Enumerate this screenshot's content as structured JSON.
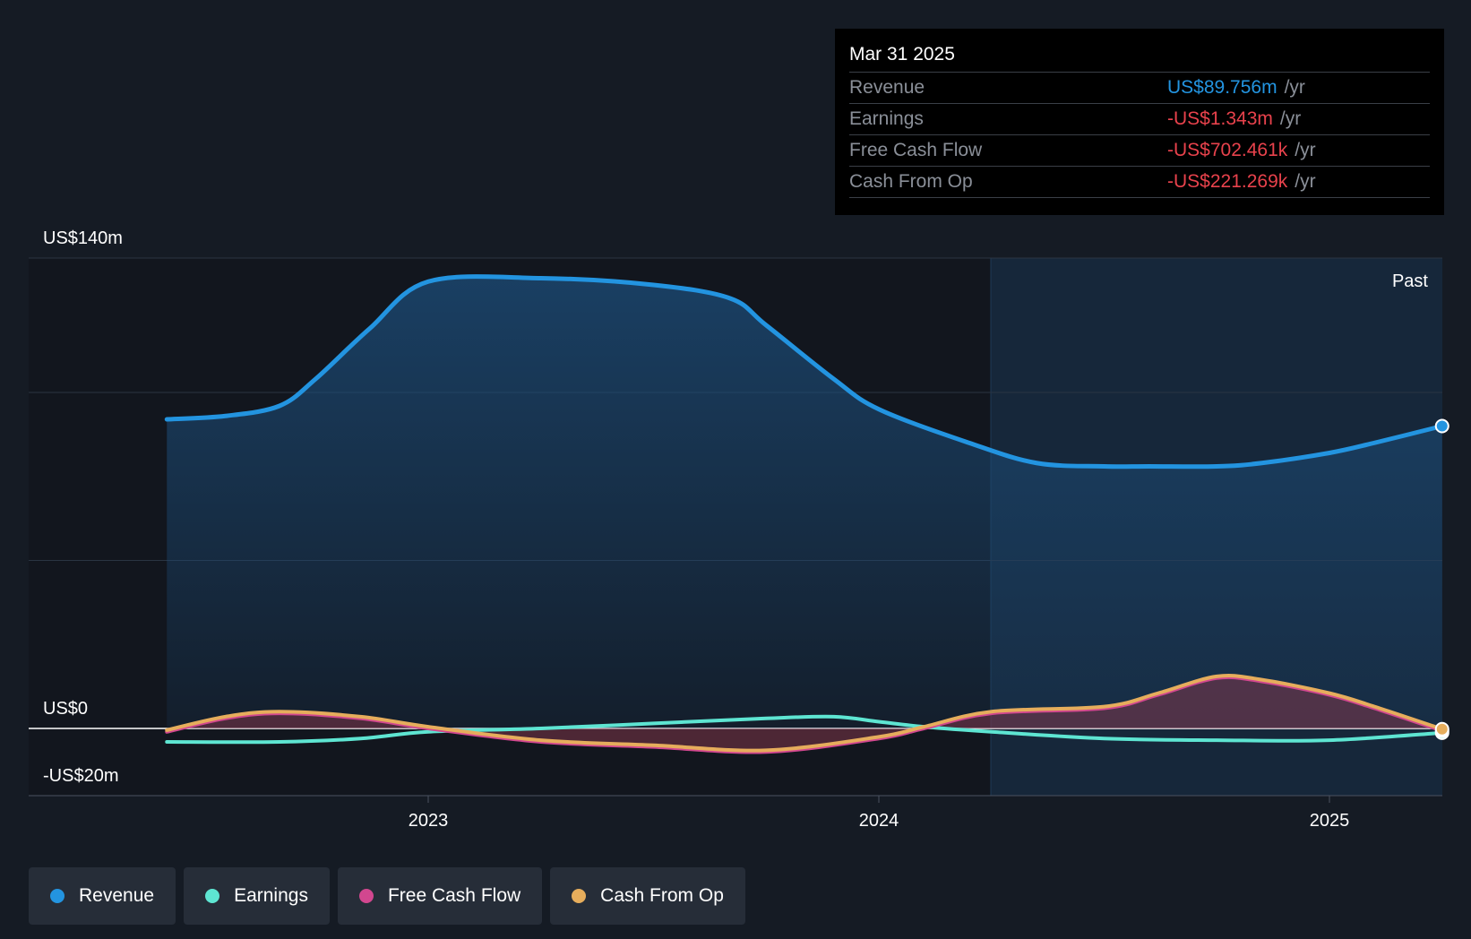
{
  "tooltip": {
    "date": "Mar 31 2025",
    "rows": [
      {
        "metric": "Revenue",
        "value": "US$89.756m",
        "unit": "/yr",
        "color": "#2394e0"
      },
      {
        "metric": "Earnings",
        "value": "-US$1.343m",
        "unit": "/yr",
        "color": "#e8424c"
      },
      {
        "metric": "Free Cash Flow",
        "value": "-US$702.461k",
        "unit": "/yr",
        "color": "#e8424c"
      },
      {
        "metric": "Cash From Op",
        "value": "-US$221.269k",
        "unit": "/yr",
        "color": "#e8424c"
      }
    ]
  },
  "past_label": "Past",
  "legend": [
    {
      "label": "Revenue",
      "color": "#2394e0"
    },
    {
      "label": "Earnings",
      "color": "#5ee5d2"
    },
    {
      "label": "Free Cash Flow",
      "color": "#d2478f"
    },
    {
      "label": "Cash From Op",
      "color": "#e6ad5c"
    }
  ],
  "chart_data": {
    "type": "line",
    "y_tick_labels": [
      "US$140m",
      "US$0",
      "-US$20m"
    ],
    "x_tick_labels": [
      "2023",
      "2024",
      "2025"
    ],
    "ylim": [
      -20,
      140
    ],
    "xlim": [
      2022.29,
      2025.25
    ],
    "x_ticks": [
      2023,
      2024,
      2025
    ],
    "grid_values": [
      140,
      100,
      50,
      0,
      -20
    ],
    "past_start": 2024.25,
    "grid": true,
    "legend_position": "bottom",
    "series": [
      {
        "name": "Revenue",
        "color": "#2394e0",
        "x": [
          2022.42,
          2022.55,
          2022.67,
          2022.75,
          2022.87,
          2023.0,
          2023.25,
          2023.5,
          2023.67,
          2023.75,
          2023.9,
          2024.0,
          2024.2,
          2024.35,
          2024.5,
          2024.6,
          2024.75,
          2024.85,
          2025.0,
          2025.1,
          2025.25
        ],
        "y": [
          92,
          93,
          96,
          104,
          119,
          133,
          134,
          132,
          128,
          120,
          104,
          95,
          85,
          79,
          78,
          78,
          78,
          79,
          82,
          85,
          90
        ]
      },
      {
        "name": "Earnings",
        "color": "#5ee5d2",
        "x": [
          2022.42,
          2022.67,
          2022.85,
          2023.0,
          2023.25,
          2023.5,
          2023.75,
          2023.9,
          2024.0,
          2024.1,
          2024.25,
          2024.5,
          2024.75,
          2025.0,
          2025.25
        ],
        "y": [
          -4,
          -4,
          -3,
          -1,
          0,
          1.5,
          3,
          3.5,
          2,
          0.5,
          -1,
          -3,
          -3.5,
          -3.5,
          -1.3
        ]
      },
      {
        "name": "Free Cash Flow",
        "color": "#d2478f",
        "x": [
          2022.42,
          2022.55,
          2022.67,
          2022.85,
          2023.0,
          2023.25,
          2023.5,
          2023.75,
          2024.0,
          2024.1,
          2024.25,
          2024.5,
          2024.62,
          2024.75,
          2024.85,
          2025.0,
          2025.1,
          2025.25
        ],
        "y": [
          -1,
          3,
          4.5,
          3,
          0,
          -4,
          -5.5,
          -7,
          -3,
          0,
          4.5,
          6,
          10,
          15,
          14,
          10,
          6,
          -0.7
        ]
      },
      {
        "name": "Cash From Op",
        "color": "#e6ad5c",
        "x": [
          2022.42,
          2022.55,
          2022.67,
          2022.85,
          2023.0,
          2023.25,
          2023.5,
          2023.75,
          2024.0,
          2024.1,
          2024.25,
          2024.5,
          2024.62,
          2024.75,
          2024.85,
          2025.0,
          2025.1,
          2025.25
        ],
        "y": [
          -0.5,
          3.5,
          5,
          3.5,
          0.5,
          -3.5,
          -5,
          -6.5,
          -2.5,
          0.5,
          5,
          6.5,
          10.5,
          15.5,
          14.5,
          10.5,
          6.5,
          -0.2
        ]
      }
    ]
  }
}
